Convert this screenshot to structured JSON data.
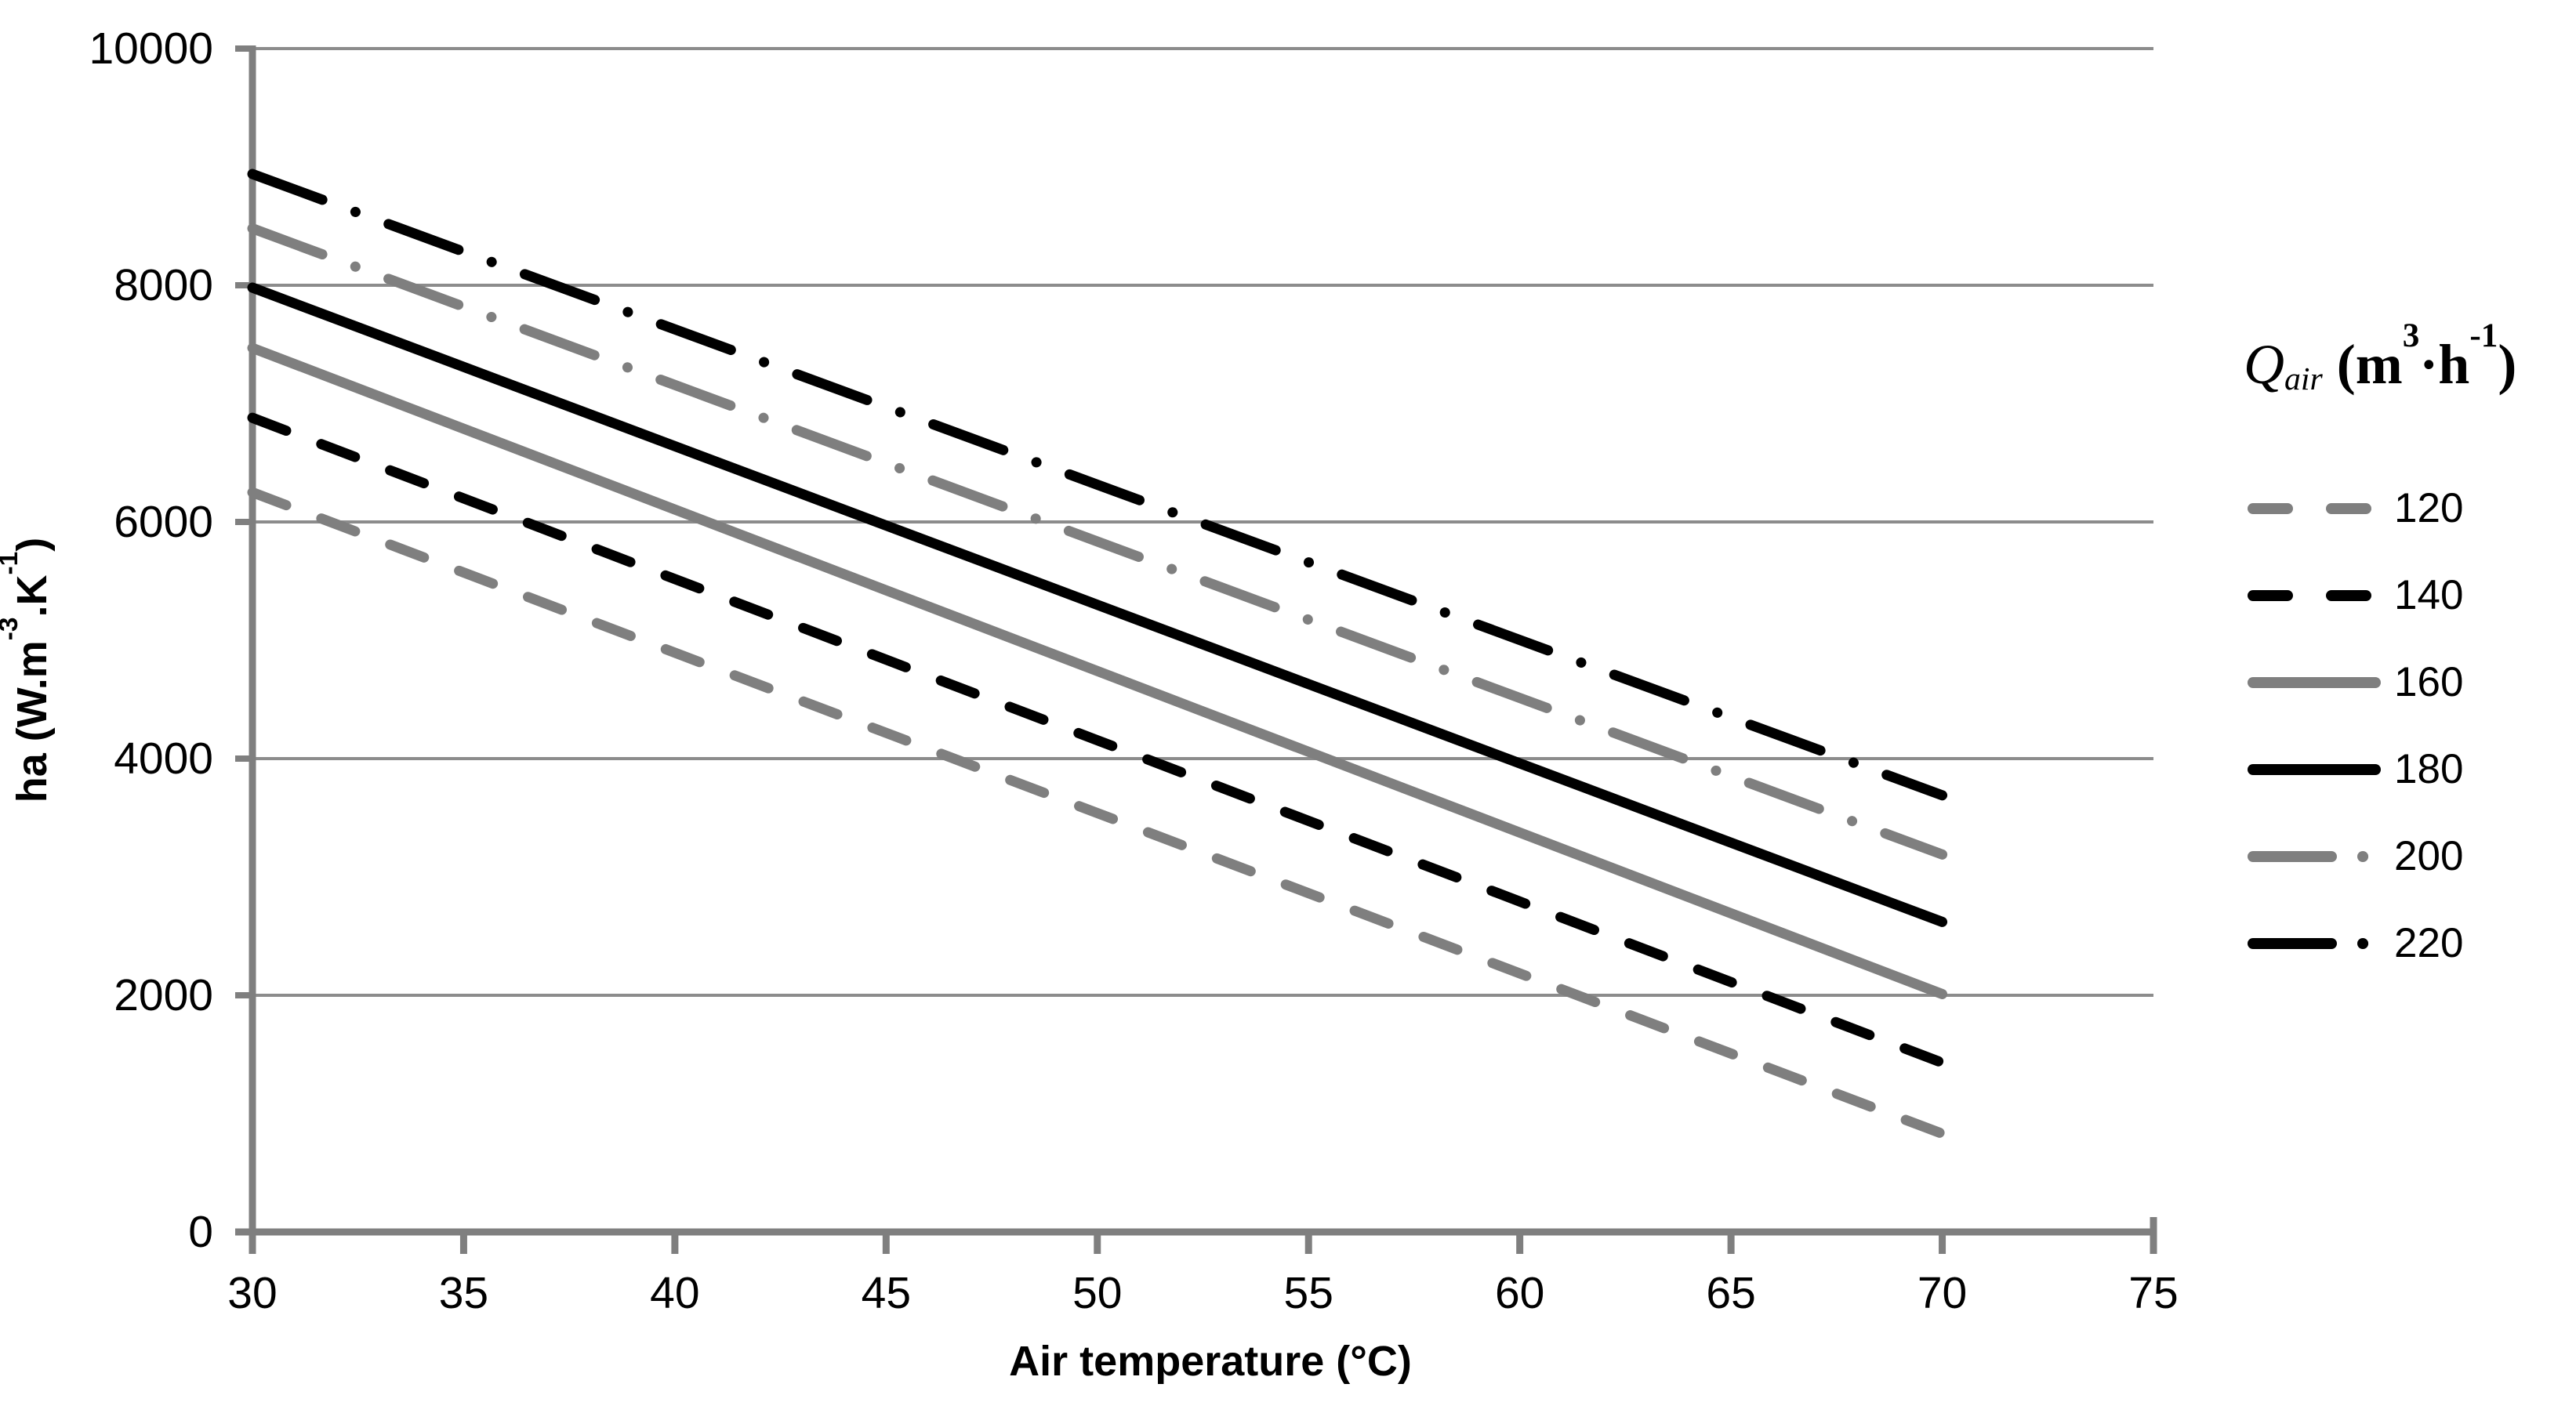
{
  "chart_data": {
    "type": "line",
    "title": "",
    "xlabel": "Air temperature (°C)",
    "ylabel": "ha (W.m-3.K-1)",
    "ylabel_parts": {
      "t1": "ha (W.m",
      "sup1": "-3",
      "t2": ".K",
      "sup2": "-1",
      "t3": ")"
    },
    "legend_title": "Qair (m3·h-1)",
    "legend_title_parts": {
      "q": "Q",
      "sub": "air",
      "t1": " (m",
      "sup1": "3",
      "t2": "·h",
      "sup2": "-1",
      "t3": ")"
    },
    "xlim": [
      30,
      75
    ],
    "ylim": [
      0,
      10000
    ],
    "x_ticks": [
      "30",
      "35",
      "40",
      "45",
      "50",
      "55",
      "60",
      "65",
      "70",
      "75"
    ],
    "y_ticks": [
      "0",
      "2000",
      "4000",
      "6000",
      "8000",
      "10000"
    ],
    "grid": "horizontal",
    "legend_position": "right",
    "series": [
      {
        "name": "120",
        "color": "#7F7F7F",
        "style": "dashed",
        "points": [
          [
            30,
            6250
          ],
          [
            70,
            830
          ]
        ]
      },
      {
        "name": "140",
        "color": "#000000",
        "style": "dashed",
        "points": [
          [
            30,
            6880
          ],
          [
            70,
            1430
          ]
        ]
      },
      {
        "name": "160",
        "color": "#7F7F7F",
        "style": "solid",
        "points": [
          [
            30,
            7470
          ],
          [
            70,
            2010
          ]
        ]
      },
      {
        "name": "180",
        "color": "#000000",
        "style": "solid",
        "points": [
          [
            30,
            7980
          ],
          [
            70,
            2620
          ]
        ]
      },
      {
        "name": "200",
        "color": "#7F7F7F",
        "style": "dashdot",
        "points": [
          [
            30,
            8480
          ],
          [
            70,
            3190
          ]
        ]
      },
      {
        "name": "220",
        "color": "#000000",
        "style": "dashdot",
        "points": [
          [
            30,
            8940
          ],
          [
            70,
            3690
          ]
        ]
      }
    ]
  },
  "colors": {
    "background": "#FFFFFF",
    "text": "#000000",
    "axis": "#7F7F7F",
    "gridline": "#8C8C8C",
    "series_black": "#000000",
    "series_gray": "#7F7F7F"
  }
}
